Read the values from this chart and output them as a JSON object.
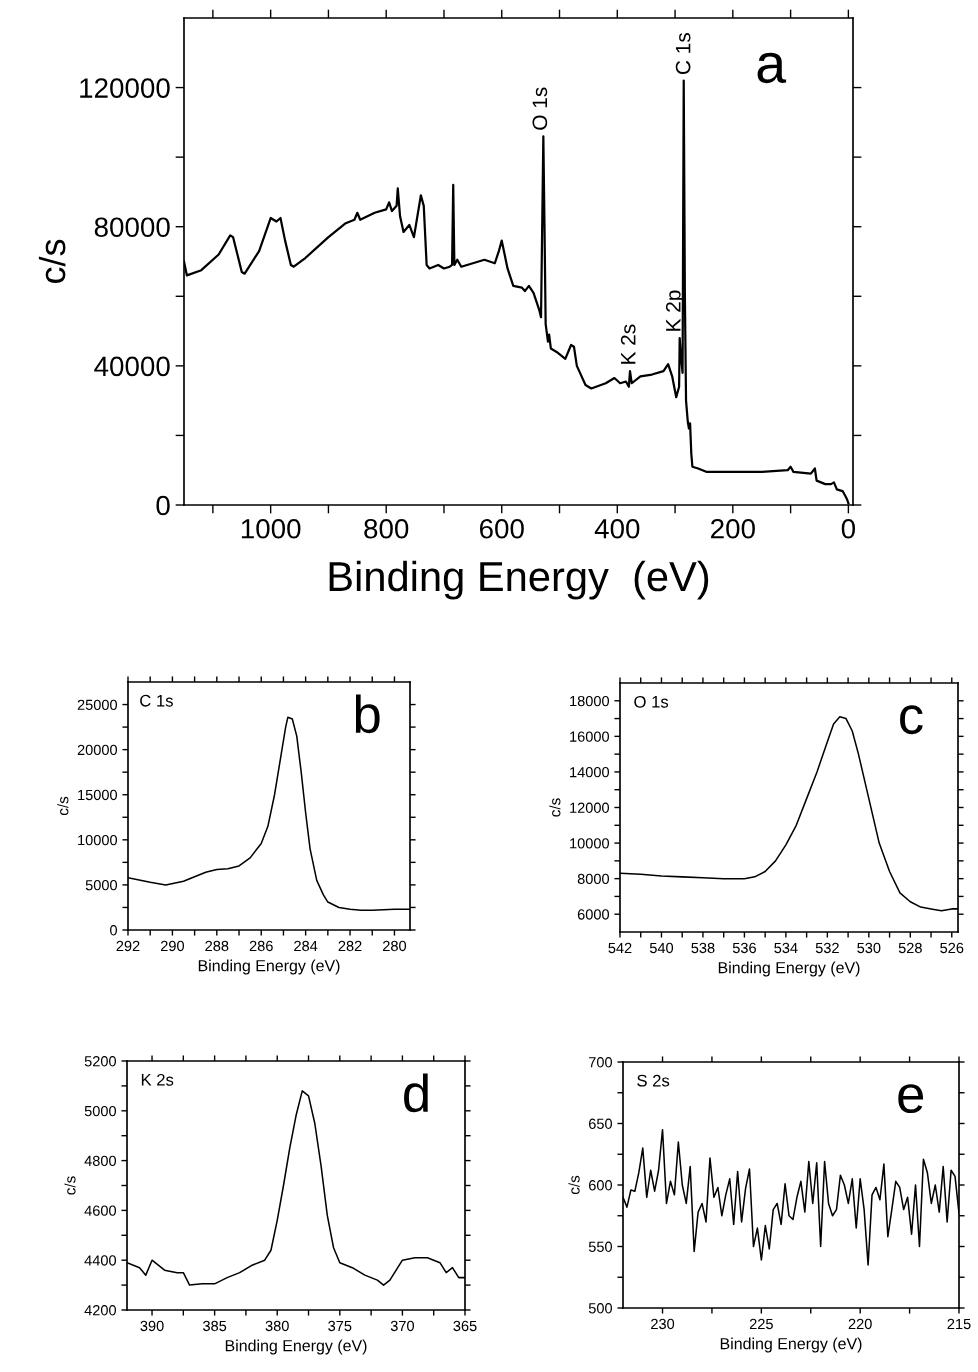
{
  "chart_data": [
    {
      "type": "line",
      "xlabel": "Binding Energy  (eV)",
      "ylabel": "c/s",
      "xlim": [
        1150,
        -8
      ],
      "ylim": [
        0,
        140000
      ],
      "xticks": [
        {
          "value": 1100,
          "label": null
        },
        1000,
        {
          "value": 900,
          "label": null
        },
        800,
        {
          "value": 700,
          "label": null
        },
        600,
        {
          "value": 500,
          "label": null
        },
        400,
        {
          "value": 300,
          "label": null
        },
        200,
        {
          "value": 100,
          "label": null
        },
        0
      ],
      "yticks": [
        0,
        {
          "value": 20000,
          "label": null
        },
        40000,
        {
          "value": 60000,
          "label": null
        },
        80000,
        {
          "value": 100000,
          "label": null
        },
        120000
      ],
      "annotations": [
        "a",
        {
          "text": "O 1s",
          "x": 531,
          "y": 106000
        },
        {
          "text": "C 1s",
          "x": 283,
          "y": 122000
        },
        {
          "text": "K 2s",
          "x": 378,
          "y": 38500
        },
        {
          "text": "K 2p",
          "x": 300,
          "y": 48000
        }
      ],
      "series": [
        {
          "color": "#000000",
          "x": [
            1150,
            1145,
            1120,
            1090,
            1070,
            1065,
            1050,
            1045,
            1020,
            1000,
            990,
            983,
            975,
            965,
            960,
            940,
            900,
            870,
            855,
            850,
            845,
            820,
            800,
            795,
            790,
            782,
            780,
            776,
            770,
            760,
            752,
            745,
            740,
            735,
            730,
            725,
            710,
            700,
            690,
            686,
            684,
            682,
            677,
            670,
            650,
            630,
            612,
            605,
            600,
            595,
            590,
            580,
            565,
            560,
            553,
            545,
            535,
            532,
            530,
            528,
            526,
            524,
            520,
            518,
            515,
            505,
            490,
            480,
            475,
            470,
            455,
            445,
            420,
            405,
            395,
            385,
            380,
            378,
            375,
            360,
            340,
            320,
            312,
            305,
            298,
            293,
            292,
            290,
            287,
            285,
            283,
            281,
            278,
            276,
            274,
            272,
            270,
            260,
            245,
            220,
            200,
            150,
            105,
            100,
            95,
            65,
            58,
            55,
            40,
            30,
            25,
            20,
            10,
            5,
            2,
            0
          ],
          "values": [
            70000,
            66000,
            67500,
            72000,
            77500,
            77000,
            67000,
            66500,
            73000,
            82500,
            81500,
            82500,
            76000,
            69000,
            68500,
            71000,
            77000,
            81000,
            82000,
            84000,
            82000,
            84000,
            85000,
            87000,
            84500,
            86000,
            91000,
            83000,
            78500,
            80500,
            77000,
            84000,
            89000,
            86000,
            69000,
            68000,
            69000,
            68000,
            68500,
            69000,
            92000,
            69000,
            70500,
            68500,
            69500,
            70500,
            69500,
            73000,
            76000,
            72000,
            68000,
            63000,
            62500,
            61500,
            63000,
            61000,
            56000,
            54000,
            80000,
            106000,
            80000,
            52000,
            47000,
            49000,
            45000,
            44000,
            42000,
            46000,
            45500,
            40000,
            34500,
            33500,
            35000,
            36500,
            35000,
            35500,
            34000,
            38500,
            35000,
            37000,
            37500,
            38500,
            40500,
            37000,
            31000,
            34000,
            48000,
            43000,
            38000,
            122000,
            60000,
            30000,
            24000,
            22000,
            23500,
            15000,
            11000,
            10500,
            9500,
            9500,
            9500,
            9500,
            10000,
            11000,
            9500,
            9000,
            10500,
            7000,
            6000,
            6000,
            6500,
            4500,
            4000,
            2500,
            1500,
            500
          ]
        }
      ]
    },
    {
      "type": "line",
      "xlabel": "Binding Energy (eV)",
      "ylabel": "c/s",
      "xlim": [
        292,
        279.3
      ],
      "ylim": [
        0,
        27500
      ],
      "xticks": [
        292,
        {
          "value": 291,
          "label": null
        },
        290,
        {
          "value": 289,
          "label": null
        },
        288,
        {
          "value": 287,
          "label": null
        },
        286,
        {
          "value": 285,
          "label": null
        },
        284,
        {
          "value": 283,
          "label": null
        },
        282,
        {
          "value": 281,
          "label": null
        },
        280
      ],
      "yticks": [
        0,
        {
          "value": 2500,
          "label": null
        },
        5000,
        {
          "value": 7500,
          "label": null
        },
        10000,
        {
          "value": 12500,
          "label": null
        },
        15000,
        {
          "value": 17500,
          "label": null
        },
        20000,
        {
          "value": 22500,
          "label": null
        },
        25000
      ],
      "annotations": [
        "C 1s",
        "b"
      ],
      "series": [
        {
          "color": "#000000",
          "x": [
            292,
            291,
            290.3,
            289.5,
            289,
            288.5,
            288,
            287.5,
            287,
            286.5,
            286,
            285.7,
            285.4,
            285.1,
            284.9,
            284.8,
            284.6,
            284.4,
            284.2,
            284,
            283.8,
            283.5,
            283.2,
            283,
            282.5,
            282,
            281.5,
            281,
            280,
            279.3
          ],
          "values": [
            5800,
            5300,
            5000,
            5400,
            5900,
            6400,
            6700,
            6800,
            7100,
            8000,
            9600,
            11500,
            15000,
            19500,
            22500,
            23600,
            23400,
            21500,
            17500,
            13000,
            9000,
            5500,
            3900,
            3100,
            2500,
            2300,
            2200,
            2200,
            2300,
            2300
          ]
        }
      ]
    },
    {
      "type": "line",
      "xlabel": "Binding Energy (eV)",
      "ylabel": "c/s",
      "xlim": [
        542,
        525.7
      ],
      "ylim": [
        5000,
        19000
      ],
      "xticks": [
        542,
        {
          "value": 541,
          "label": null
        },
        540,
        {
          "value": 539,
          "label": null
        },
        538,
        {
          "value": 537,
          "label": null
        },
        536,
        {
          "value": 535,
          "label": null
        },
        534,
        {
          "value": 533,
          "label": null
        },
        532,
        {
          "value": 531,
          "label": null
        },
        530,
        {
          "value": 529,
          "label": null
        },
        528,
        {
          "value": 527,
          "label": null
        },
        526
      ],
      "yticks": [
        6000,
        {
          "value": 7000,
          "label": null
        },
        8000,
        {
          "value": 9000,
          "label": null
        },
        10000,
        {
          "value": 11000,
          "label": null
        },
        12000,
        {
          "value": 13000,
          "label": null
        },
        14000,
        {
          "value": 15000,
          "label": null
        },
        16000,
        {
          "value": 17000,
          "label": null
        },
        18000
      ],
      "annotations": [
        "O 1s",
        "c"
      ],
      "series": [
        {
          "color": "#000000",
          "x": [
            542,
            541,
            540,
            539,
            538,
            537,
            536,
            535.5,
            535,
            534.5,
            534,
            533.5,
            533,
            532.5,
            532,
            531.7,
            531.4,
            531.1,
            530.8,
            530.5,
            530,
            529.5,
            529,
            528.5,
            528,
            527.5,
            527,
            526.5,
            526,
            525.7
          ],
          "values": [
            8300,
            8250,
            8150,
            8100,
            8050,
            8000,
            8000,
            8100,
            8400,
            9000,
            9900,
            11000,
            12500,
            14000,
            15700,
            16700,
            17100,
            17000,
            16300,
            15000,
            12500,
            10000,
            8400,
            7200,
            6700,
            6400,
            6300,
            6200,
            6300,
            6300
          ]
        }
      ]
    },
    {
      "type": "line",
      "xlabel": "Binding Energy (eV)",
      "ylabel": "c/s",
      "xlim": [
        392,
        365
      ],
      "ylim": [
        4200,
        5200
      ],
      "xticks": [
        390,
        {
          "value": 387.5,
          "label": null
        },
        385,
        {
          "value": 382.5,
          "label": null
        },
        380,
        {
          "value": 377.5,
          "label": null
        },
        375,
        {
          "value": 372.5,
          "label": null
        },
        370,
        {
          "value": 367.5,
          "label": null
        },
        365
      ],
      "yticks": [
        4200,
        {
          "value": 4300,
          "label": null
        },
        4400,
        {
          "value": 4500,
          "label": null
        },
        4600,
        {
          "value": 4700,
          "label": null
        },
        4800,
        {
          "value": 4900,
          "label": null
        },
        5000,
        {
          "value": 5100,
          "label": null
        },
        5200
      ],
      "annotations": [
        "K 2s",
        "d"
      ],
      "series": [
        {
          "color": "#000000",
          "x": [
            392,
            391,
            390.5,
            390,
            389,
            388,
            387.5,
            387,
            386,
            385,
            384,
            383,
            382,
            381,
            380.5,
            380,
            379.5,
            379,
            378.5,
            378,
            377.5,
            377,
            376.5,
            376,
            375.5,
            375,
            374,
            373,
            372,
            371.5,
            371,
            370,
            369,
            368,
            367,
            366.5,
            366,
            365.5,
            365
          ],
          "values": [
            4390,
            4370,
            4340,
            4400,
            4360,
            4350,
            4350,
            4300,
            4305,
            4305,
            4330,
            4350,
            4380,
            4400,
            4440,
            4560,
            4700,
            4850,
            4980,
            5080,
            5060,
            4950,
            4780,
            4580,
            4450,
            4390,
            4370,
            4340,
            4320,
            4300,
            4320,
            4400,
            4410,
            4410,
            4390,
            4350,
            4370,
            4330,
            4330
          ]
        }
      ]
    },
    {
      "type": "line",
      "xlabel": "Binding Energy (eV)",
      "ylabel": "c/s",
      "xlim": [
        232,
        215
      ],
      "ylim": [
        500,
        700
      ],
      "xticks": [
        230,
        {
          "value": 227.5,
          "label": null
        },
        225,
        {
          "value": 222.5,
          "label": null
        },
        220,
        {
          "value": 217.5,
          "label": null
        },
        215
      ],
      "yticks": [
        500,
        {
          "value": 525,
          "label": null
        },
        550,
        {
          "value": 575,
          "label": null
        },
        600,
        {
          "value": 625,
          "label": null
        },
        650,
        {
          "value": 675,
          "label": null
        },
        700
      ],
      "annotations": [
        "S 2s",
        "e"
      ],
      "series": [
        {
          "color": "#000000",
          "x": [
            232.0,
            231.8,
            231.6,
            231.4,
            231.2,
            231.0,
            230.8,
            230.6,
            230.4,
            230.2,
            230.0,
            229.8,
            229.6,
            229.4,
            229.2,
            229.0,
            228.8,
            228.6,
            228.4,
            228.2,
            228.0,
            227.8,
            227.6,
            227.4,
            227.2,
            227.0,
            226.8,
            226.6,
            226.4,
            226.2,
            226.0,
            225.8,
            225.6,
            225.4,
            225.2,
            225.0,
            224.8,
            224.6,
            224.4,
            224.2,
            224.0,
            223.8,
            223.6,
            223.4,
            223.2,
            223.0,
            222.8,
            222.6,
            222.4,
            222.2,
            222.0,
            221.8,
            221.6,
            221.4,
            221.2,
            221.0,
            220.8,
            220.6,
            220.4,
            220.2,
            220.0,
            219.8,
            219.6,
            219.4,
            219.2,
            219.0,
            218.8,
            218.6,
            218.4,
            218.2,
            218.0,
            217.8,
            217.6,
            217.4,
            217.2,
            217.0,
            216.8,
            216.6,
            216.4,
            216.2,
            216.0,
            215.8,
            215.6,
            215.4,
            215.2,
            215.0
          ],
          "values": [
            590,
            582,
            596,
            595,
            610,
            630,
            590,
            612,
            595,
            612,
            645,
            585,
            603,
            592,
            635,
            600,
            585,
            615,
            546,
            578,
            585,
            570,
            622,
            590,
            598,
            575,
            592,
            605,
            568,
            611,
            570,
            597,
            613,
            550,
            565,
            539,
            567,
            548,
            580,
            585,
            568,
            601,
            575,
            572,
            590,
            603,
            578,
            619,
            585,
            618,
            550,
            619,
            585,
            575,
            580,
            608,
            600,
            585,
            605,
            565,
            605,
            580,
            535,
            592,
            598,
            588,
            617,
            558,
            580,
            603,
            598,
            580,
            590,
            560,
            600,
            550,
            621,
            610,
            585,
            600,
            578,
            615,
            570,
            612,
            607,
            577
          ]
        }
      ]
    }
  ]
}
